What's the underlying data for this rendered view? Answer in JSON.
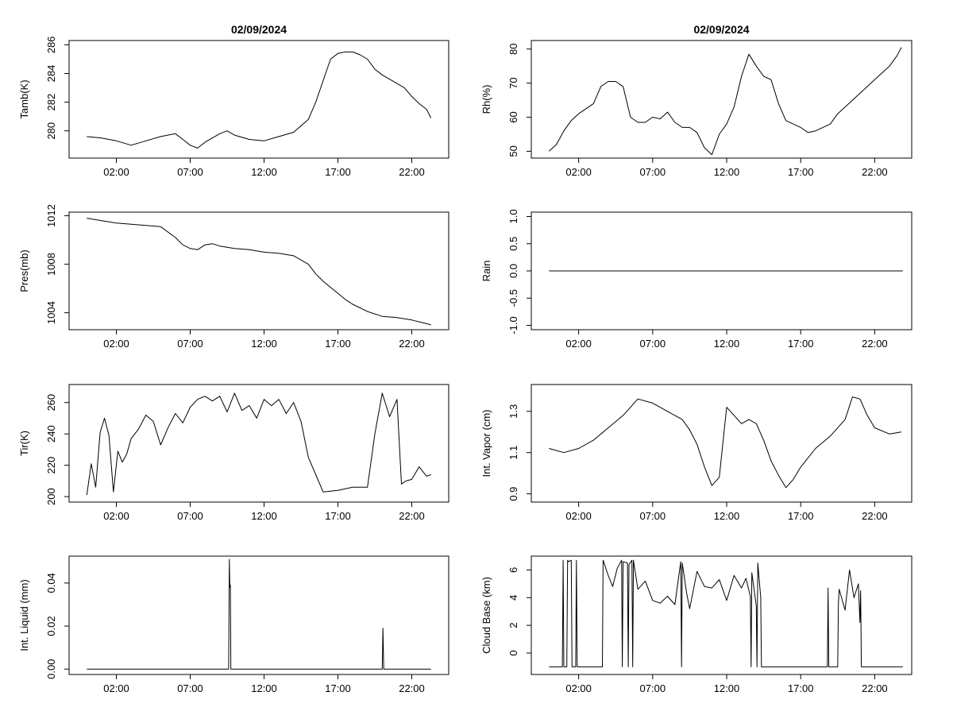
{
  "chart_data": [
    {
      "panel": "tamb",
      "type": "line",
      "title": "02/09/2024",
      "ylabel": "Tamb(K)",
      "xlabel": "",
      "xlim": [
        -1.2,
        24.5
      ],
      "ylim": [
        278.1,
        286.3
      ],
      "xticks": [
        2,
        7,
        12,
        17,
        22
      ],
      "xtick_labels": [
        "02:00",
        "07:00",
        "12:00",
        "17:00",
        "22:00"
      ],
      "yticks": [
        280,
        282,
        284,
        286
      ],
      "ytick_labels": [
        "280",
        "282",
        "284",
        "286"
      ],
      "x": [
        0,
        1,
        2,
        3,
        4,
        5,
        6,
        6.5,
        7,
        7.5,
        8,
        8.5,
        9,
        9.5,
        10,
        11,
        12,
        13,
        14,
        15,
        15.5,
        16,
        16.5,
        17,
        17.5,
        18,
        18.5,
        19,
        19.5,
        20,
        20.5,
        21,
        21.5,
        22,
        22.5,
        23,
        23.3
      ],
      "y": [
        279.6,
        279.5,
        279.3,
        279.0,
        279.3,
        279.6,
        279.8,
        279.4,
        279.0,
        278.8,
        279.2,
        279.5,
        279.8,
        280.0,
        279.7,
        279.4,
        279.3,
        279.6,
        279.9,
        280.8,
        282.0,
        283.5,
        285.0,
        285.4,
        285.5,
        285.5,
        285.3,
        285.0,
        284.3,
        283.9,
        283.6,
        283.3,
        283.0,
        282.4,
        281.9,
        281.5,
        280.9
      ]
    },
    {
      "panel": "rh",
      "type": "line",
      "title": "02/09/2024",
      "ylabel": "Rh(%)",
      "xlabel": "",
      "xlim": [
        -1.2,
        24.5
      ],
      "ylim": [
        48,
        82.5
      ],
      "xticks": [
        2,
        7,
        12,
        17,
        22
      ],
      "xtick_labels": [
        "02:00",
        "07:00",
        "12:00",
        "17:00",
        "22:00"
      ],
      "yticks": [
        50,
        60,
        70,
        80
      ],
      "ytick_labels": [
        "50",
        "60",
        "70",
        "80"
      ],
      "x": [
        0,
        0.5,
        1,
        1.5,
        2,
        3,
        3.5,
        4,
        4.5,
        5,
        5.5,
        6,
        6.5,
        7,
        7.5,
        8,
        8.5,
        9,
        9.5,
        10,
        10.5,
        11,
        11.5,
        12,
        12.5,
        13,
        13.5,
        14,
        14.5,
        15,
        15.5,
        16,
        17,
        17.5,
        18,
        18.5,
        19,
        19.5,
        20,
        21,
        22,
        22.5,
        23,
        23.5,
        23.8
      ],
      "y": [
        50,
        52,
        56,
        59,
        61,
        64,
        69,
        70.5,
        70.5,
        69,
        60,
        58.5,
        58.5,
        60,
        59.5,
        61.5,
        58.5,
        57,
        57,
        55.5,
        51,
        49,
        55,
        58,
        63,
        72,
        78.5,
        75,
        72,
        71,
        64,
        59,
        57,
        55.5,
        56,
        57,
        58,
        61,
        63,
        67,
        71,
        73,
        75,
        78,
        80.5
      ]
    },
    {
      "panel": "pres",
      "type": "line",
      "title": "",
      "ylabel": "Pres(mb)",
      "xlabel": "",
      "xlim": [
        -1.2,
        24.5
      ],
      "ylim": [
        1002.6,
        1012.3
      ],
      "xticks": [
        2,
        7,
        12,
        17,
        22
      ],
      "xtick_labels": [
        "02:00",
        "07:00",
        "12:00",
        "17:00",
        "22:00"
      ],
      "yticks": [
        1004,
        1008,
        1012
      ],
      "ytick_labels": [
        "1004",
        "1008",
        "1012"
      ],
      "x": [
        0,
        1,
        2,
        3,
        4,
        5,
        6,
        6.5,
        7,
        7.5,
        8,
        8.5,
        9,
        10,
        11,
        12,
        13,
        14,
        15,
        15.5,
        16,
        16.5,
        17,
        17.5,
        18,
        19,
        20,
        21,
        22,
        23,
        23.3
      ],
      "y": [
        1011.8,
        1011.6,
        1011.4,
        1011.3,
        1011.2,
        1011.1,
        1010.2,
        1009.6,
        1009.3,
        1009.2,
        1009.6,
        1009.7,
        1009.5,
        1009.3,
        1009.2,
        1009.0,
        1008.9,
        1008.7,
        1008.0,
        1007.2,
        1006.6,
        1006.1,
        1005.6,
        1005.1,
        1004.7,
        1004.1,
        1003.7,
        1003.6,
        1003.4,
        1003.1,
        1003.0
      ]
    },
    {
      "panel": "rain",
      "type": "line",
      "title": "",
      "ylabel": "Rain",
      "xlabel": "",
      "xlim": [
        -1.2,
        24.5
      ],
      "ylim": [
        -1.08,
        1.08
      ],
      "xticks": [
        2,
        7,
        12,
        17,
        22
      ],
      "xtick_labels": [
        "02:00",
        "07:00",
        "12:00",
        "17:00",
        "22:00"
      ],
      "yticks": [
        -1.0,
        -0.5,
        0.0,
        0.5,
        1.0
      ],
      "ytick_labels": [
        "-1.0",
        "-0.5",
        "0.0",
        "0.5",
        "1.0"
      ],
      "x": [
        0,
        23.9
      ],
      "y": [
        0,
        0
      ]
    },
    {
      "panel": "tir",
      "type": "line",
      "title": "",
      "ylabel": "Tir(K)",
      "xlabel": "",
      "xlim": [
        -1.2,
        24.5
      ],
      "ylim": [
        196.5,
        271.5
      ],
      "xticks": [
        2,
        7,
        12,
        17,
        22
      ],
      "xtick_labels": [
        "02:00",
        "07:00",
        "12:00",
        "17:00",
        "22:00"
      ],
      "yticks": [
        200,
        220,
        240,
        260
      ],
      "ytick_labels": [
        "200",
        "220",
        "240",
        "260"
      ],
      "x": [
        0,
        0.3,
        0.6,
        0.9,
        1.2,
        1.5,
        1.8,
        2.1,
        2.4,
        2.7,
        3.0,
        3.5,
        4.0,
        4.5,
        5.0,
        5.5,
        6.0,
        6.5,
        7.0,
        7.5,
        8.0,
        8.5,
        9.0,
        9.5,
        10.0,
        10.5,
        11.0,
        11.5,
        12.0,
        12.5,
        13.0,
        13.5,
        14.0,
        14.5,
        15.0,
        15.5,
        16.0,
        17.0,
        18.0,
        19.0,
        19.5,
        20.0,
        20.5,
        21.0,
        21.3,
        21.6,
        22.0,
        22.5,
        23.0,
        23.3
      ],
      "y": [
        201,
        221,
        206,
        241,
        250,
        239,
        203,
        229,
        222,
        227,
        237,
        243,
        252,
        248,
        233,
        244,
        253,
        247,
        257,
        262,
        264,
        261,
        264,
        254,
        266,
        255,
        258,
        250,
        262,
        258,
        262,
        253,
        260,
        248,
        225,
        214,
        203,
        204,
        206,
        206,
        240,
        266,
        251,
        262,
        208,
        210,
        211,
        219,
        213,
        214
      ]
    },
    {
      "panel": "vapor",
      "type": "line",
      "title": "",
      "ylabel": "Int. Vapor (cm)",
      "xlabel": "",
      "xlim": [
        -1.2,
        24.5
      ],
      "ylim": [
        0.86,
        1.43
      ],
      "xticks": [
        2,
        7,
        12,
        17,
        22
      ],
      "xtick_labels": [
        "02:00",
        "07:00",
        "12:00",
        "17:00",
        "22:00"
      ],
      "yticks": [
        0.9,
        1.1,
        1.3
      ],
      "ytick_labels": [
        "0.9",
        "1.1",
        "1.3"
      ],
      "x": [
        0,
        1,
        2,
        3,
        4,
        5,
        6,
        7,
        8,
        9,
        9.5,
        10,
        10.5,
        11,
        11.5,
        12,
        12.5,
        13,
        13.5,
        14,
        14.5,
        15,
        15.5,
        16,
        16.5,
        17,
        18,
        19,
        20,
        20.5,
        21,
        21.5,
        22,
        23,
        23.8
      ],
      "y": [
        1.12,
        1.1,
        1.12,
        1.16,
        1.22,
        1.28,
        1.36,
        1.34,
        1.3,
        1.26,
        1.21,
        1.14,
        1.03,
        0.94,
        0.98,
        1.32,
        1.28,
        1.24,
        1.26,
        1.24,
        1.16,
        1.06,
        0.99,
        0.93,
        0.97,
        1.03,
        1.12,
        1.18,
        1.26,
        1.37,
        1.36,
        1.28,
        1.22,
        1.19,
        1.2
      ]
    },
    {
      "panel": "liquid",
      "type": "line",
      "title": "",
      "ylabel": "Int. Liquid (mm)",
      "xlabel": "",
      "xlim": [
        -1.2,
        24.5
      ],
      "ylim": [
        -0.0025,
        0.0525
      ],
      "xticks": [
        2,
        7,
        12,
        17,
        22
      ],
      "xtick_labels": [
        "02:00",
        "07:00",
        "12:00",
        "17:00",
        "22:00"
      ],
      "yticks": [
        0.0,
        0.02,
        0.04
      ],
      "ytick_labels": [
        "0.00",
        "0.02",
        "0.04"
      ],
      "x": [
        0,
        9.6,
        9.65,
        9.68,
        9.72,
        9.75,
        9.8,
        20.0,
        20.05,
        20.1,
        23.3
      ],
      "y": [
        0,
        0,
        0.051,
        0.038,
        0.039,
        0,
        0,
        0,
        0.019,
        0,
        0
      ]
    },
    {
      "panel": "cloudbase",
      "type": "line",
      "title": "",
      "ylabel": "Cloud Base (km)",
      "xlabel": "",
      "xlim": [
        -1.2,
        24.5
      ],
      "ylim": [
        -1.55,
        7.0
      ],
      "xticks": [
        2,
        7,
        12,
        17,
        22
      ],
      "xtick_labels": [
        "02:00",
        "07:00",
        "12:00",
        "17:00",
        "22:00"
      ],
      "yticks": [
        0,
        2,
        4,
        6
      ],
      "ytick_labels": [
        "0",
        "2",
        "4",
        "6"
      ],
      "x": [
        0,
        0.9,
        0.95,
        1.0,
        1.2,
        1.25,
        1.3,
        1.5,
        1.55,
        1.6,
        1.8,
        1.85,
        1.9,
        3.6,
        3.65,
        4.0,
        4.3,
        4.6,
        4.9,
        4.95,
        5.0,
        5.3,
        5.35,
        5.4,
        5.6,
        5.65,
        5.7,
        6.0,
        6.5,
        7.0,
        7.5,
        8.0,
        8.5,
        8.9,
        8.95,
        9.0,
        9.3,
        9.5,
        10.0,
        10.5,
        11.0,
        11.5,
        12.0,
        12.5,
        13.0,
        13.3,
        13.6,
        13.65,
        13.7,
        14.0,
        14.05,
        14.1,
        14.3,
        14.35,
        14.4,
        18.8,
        18.85,
        18.9,
        19.5,
        19.55,
        19.6,
        20.0,
        20.3,
        20.6,
        20.9,
        21.0,
        21.05,
        21.1,
        23.9
      ],
      "y": [
        -1.0,
        -1.0,
        6.7,
        -1.0,
        -1.0,
        6.7,
        6.6,
        6.7,
        -1.0,
        -1.0,
        -1.0,
        6.7,
        -1.0,
        -1.0,
        6.7,
        5.6,
        4.8,
        6.1,
        6.7,
        -1.0,
        6.6,
        6.5,
        -1.0,
        6.4,
        6.7,
        -1.0,
        6.7,
        4.6,
        5.2,
        3.8,
        3.6,
        4.1,
        3.5,
        6.6,
        -1.0,
        6.5,
        4.3,
        3.2,
        5.9,
        4.8,
        4.7,
        5.3,
        3.8,
        5.6,
        4.7,
        5.4,
        4.1,
        -1.0,
        5.8,
        3.4,
        -1.0,
        6.5,
        4.0,
        -1.0,
        -1.0,
        -1.0,
        4.7,
        -1.0,
        -1.0,
        3.6,
        4.6,
        3.1,
        6.0,
        4.0,
        5.0,
        2.2,
        4.5,
        -1.0,
        -1.0
      ]
    }
  ]
}
